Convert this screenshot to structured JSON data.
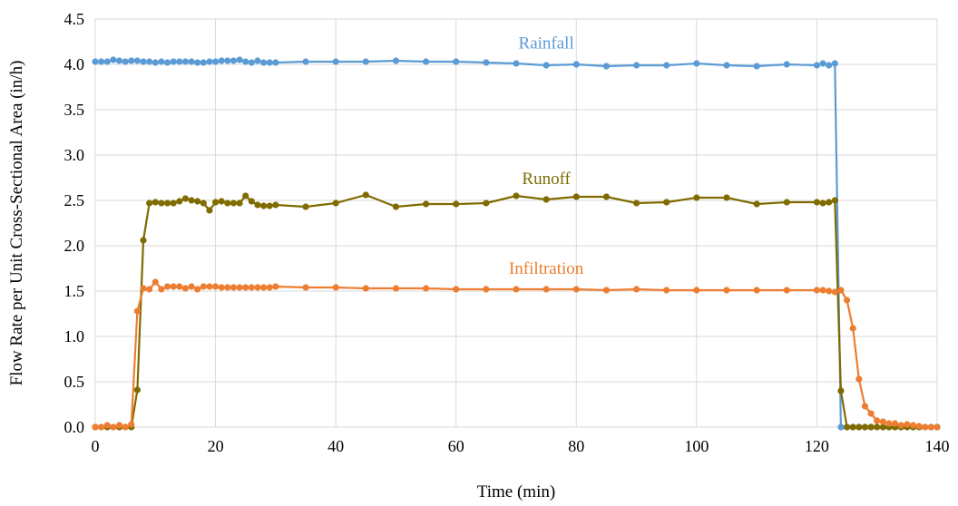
{
  "chart_data": {
    "type": "line",
    "xlabel": "Time (min)",
    "ylabel": "Flow Rate per Unit Cross-Sectional Area (in/h)",
    "xlim": [
      0,
      140
    ],
    "ylim": [
      0,
      4.5
    ],
    "xticks": [
      "0",
      "20",
      "40",
      "60",
      "80",
      "100",
      "120",
      "140"
    ],
    "yticks": [
      "0.0",
      "0.5",
      "1.0",
      "1.5",
      "2.0",
      "2.5",
      "3.0",
      "3.5",
      "4.0",
      "4.5"
    ],
    "grid": "both",
    "legend": "none",
    "series": [
      {
        "name": "Rainfall",
        "color": "#5b9bd5",
        "label_position": "above-line-center",
        "x": [
          0,
          1,
          2,
          3,
          4,
          5,
          6,
          7,
          8,
          9,
          10,
          11,
          12,
          13,
          14,
          15,
          16,
          17,
          18,
          19,
          20,
          21,
          22,
          23,
          24,
          25,
          26,
          27,
          28,
          29,
          30,
          35,
          40,
          45,
          50,
          55,
          60,
          65,
          70,
          75,
          80,
          85,
          90,
          95,
          100,
          105,
          110,
          115,
          120,
          121,
          122,
          123,
          124,
          125,
          126,
          127,
          128,
          129,
          130,
          131,
          132,
          133,
          134,
          135,
          136,
          137,
          138,
          139,
          140
        ],
        "y": [
          4.03,
          4.03,
          4.03,
          4.05,
          4.04,
          4.03,
          4.04,
          4.04,
          4.03,
          4.03,
          4.02,
          4.03,
          4.02,
          4.03,
          4.03,
          4.03,
          4.03,
          4.02,
          4.02,
          4.03,
          4.03,
          4.04,
          4.04,
          4.04,
          4.05,
          4.03,
          4.02,
          4.04,
          4.02,
          4.02,
          4.02,
          4.03,
          4.03,
          4.03,
          4.04,
          4.03,
          4.03,
          4.02,
          4.01,
          3.99,
          4.0,
          3.98,
          3.99,
          3.99,
          4.01,
          3.99,
          3.98,
          4.0,
          3.99,
          4.01,
          3.99,
          4.01,
          0.0,
          0.0,
          0.0,
          0.0,
          0.0,
          0.0,
          0.0,
          0.0,
          0.0,
          0.0,
          0.0,
          0.0,
          0.0,
          0.0,
          0.0,
          0.0,
          0.0
        ]
      },
      {
        "name": "Runoff",
        "color": "#7f6b00",
        "label_position": "above-line-center",
        "x": [
          0,
          1,
          2,
          3,
          4,
          5,
          6,
          7,
          8,
          9,
          10,
          11,
          12,
          13,
          14,
          15,
          16,
          17,
          18,
          19,
          20,
          21,
          22,
          23,
          24,
          25,
          26,
          27,
          28,
          29,
          30,
          35,
          40,
          45,
          50,
          55,
          60,
          65,
          70,
          75,
          80,
          85,
          90,
          95,
          100,
          105,
          110,
          115,
          120,
          121,
          122,
          123,
          124,
          125,
          126,
          127,
          128,
          129,
          130,
          131,
          132,
          133,
          134,
          135,
          136,
          137,
          138,
          139,
          140
        ],
        "y": [
          0.0,
          0.0,
          0.0,
          0.0,
          0.0,
          0.0,
          0.0,
          0.41,
          2.06,
          2.47,
          2.48,
          2.47,
          2.47,
          2.47,
          2.49,
          2.52,
          2.5,
          2.49,
          2.47,
          2.39,
          2.48,
          2.49,
          2.47,
          2.47,
          2.47,
          2.55,
          2.49,
          2.45,
          2.44,
          2.44,
          2.45,
          2.43,
          2.47,
          2.56,
          2.43,
          2.46,
          2.46,
          2.47,
          2.55,
          2.51,
          2.54,
          2.54,
          2.47,
          2.48,
          2.53,
          2.53,
          2.46,
          2.48,
          2.48,
          2.47,
          2.48,
          2.5,
          0.4,
          0.0,
          0.0,
          0.0,
          0.0,
          0.0,
          0.0,
          0.0,
          0.0,
          0.0,
          0.0,
          0.0,
          0.0,
          0.0,
          0.0,
          0.0,
          0.0
        ]
      },
      {
        "name": "Infiltration",
        "color": "#ed7d31",
        "label_position": "above-line-center",
        "x": [
          0,
          1,
          2,
          3,
          4,
          5,
          6,
          7,
          8,
          9,
          10,
          11,
          12,
          13,
          14,
          15,
          16,
          17,
          18,
          19,
          20,
          21,
          22,
          23,
          24,
          25,
          26,
          27,
          28,
          29,
          30,
          35,
          40,
          45,
          50,
          55,
          60,
          65,
          70,
          75,
          80,
          85,
          90,
          95,
          100,
          105,
          110,
          115,
          120,
          121,
          122,
          123,
          124,
          125,
          126,
          127,
          128,
          129,
          130,
          131,
          132,
          133,
          134,
          135,
          136,
          137,
          138,
          139,
          140
        ],
        "y": [
          0.0,
          0.0,
          0.02,
          0.0,
          0.02,
          0.0,
          0.03,
          1.28,
          1.53,
          1.52,
          1.6,
          1.52,
          1.55,
          1.55,
          1.55,
          1.53,
          1.55,
          1.52,
          1.55,
          1.55,
          1.55,
          1.54,
          1.54,
          1.54,
          1.54,
          1.54,
          1.54,
          1.54,
          1.54,
          1.54,
          1.55,
          1.54,
          1.54,
          1.53,
          1.53,
          1.53,
          1.52,
          1.52,
          1.52,
          1.52,
          1.52,
          1.51,
          1.52,
          1.51,
          1.51,
          1.51,
          1.51,
          1.51,
          1.51,
          1.51,
          1.5,
          1.49,
          1.51,
          1.4,
          1.09,
          0.53,
          0.23,
          0.15,
          0.07,
          0.06,
          0.04,
          0.04,
          0.02,
          0.03,
          0.02,
          0.01,
          0.0,
          0.0,
          0.0
        ]
      }
    ]
  }
}
